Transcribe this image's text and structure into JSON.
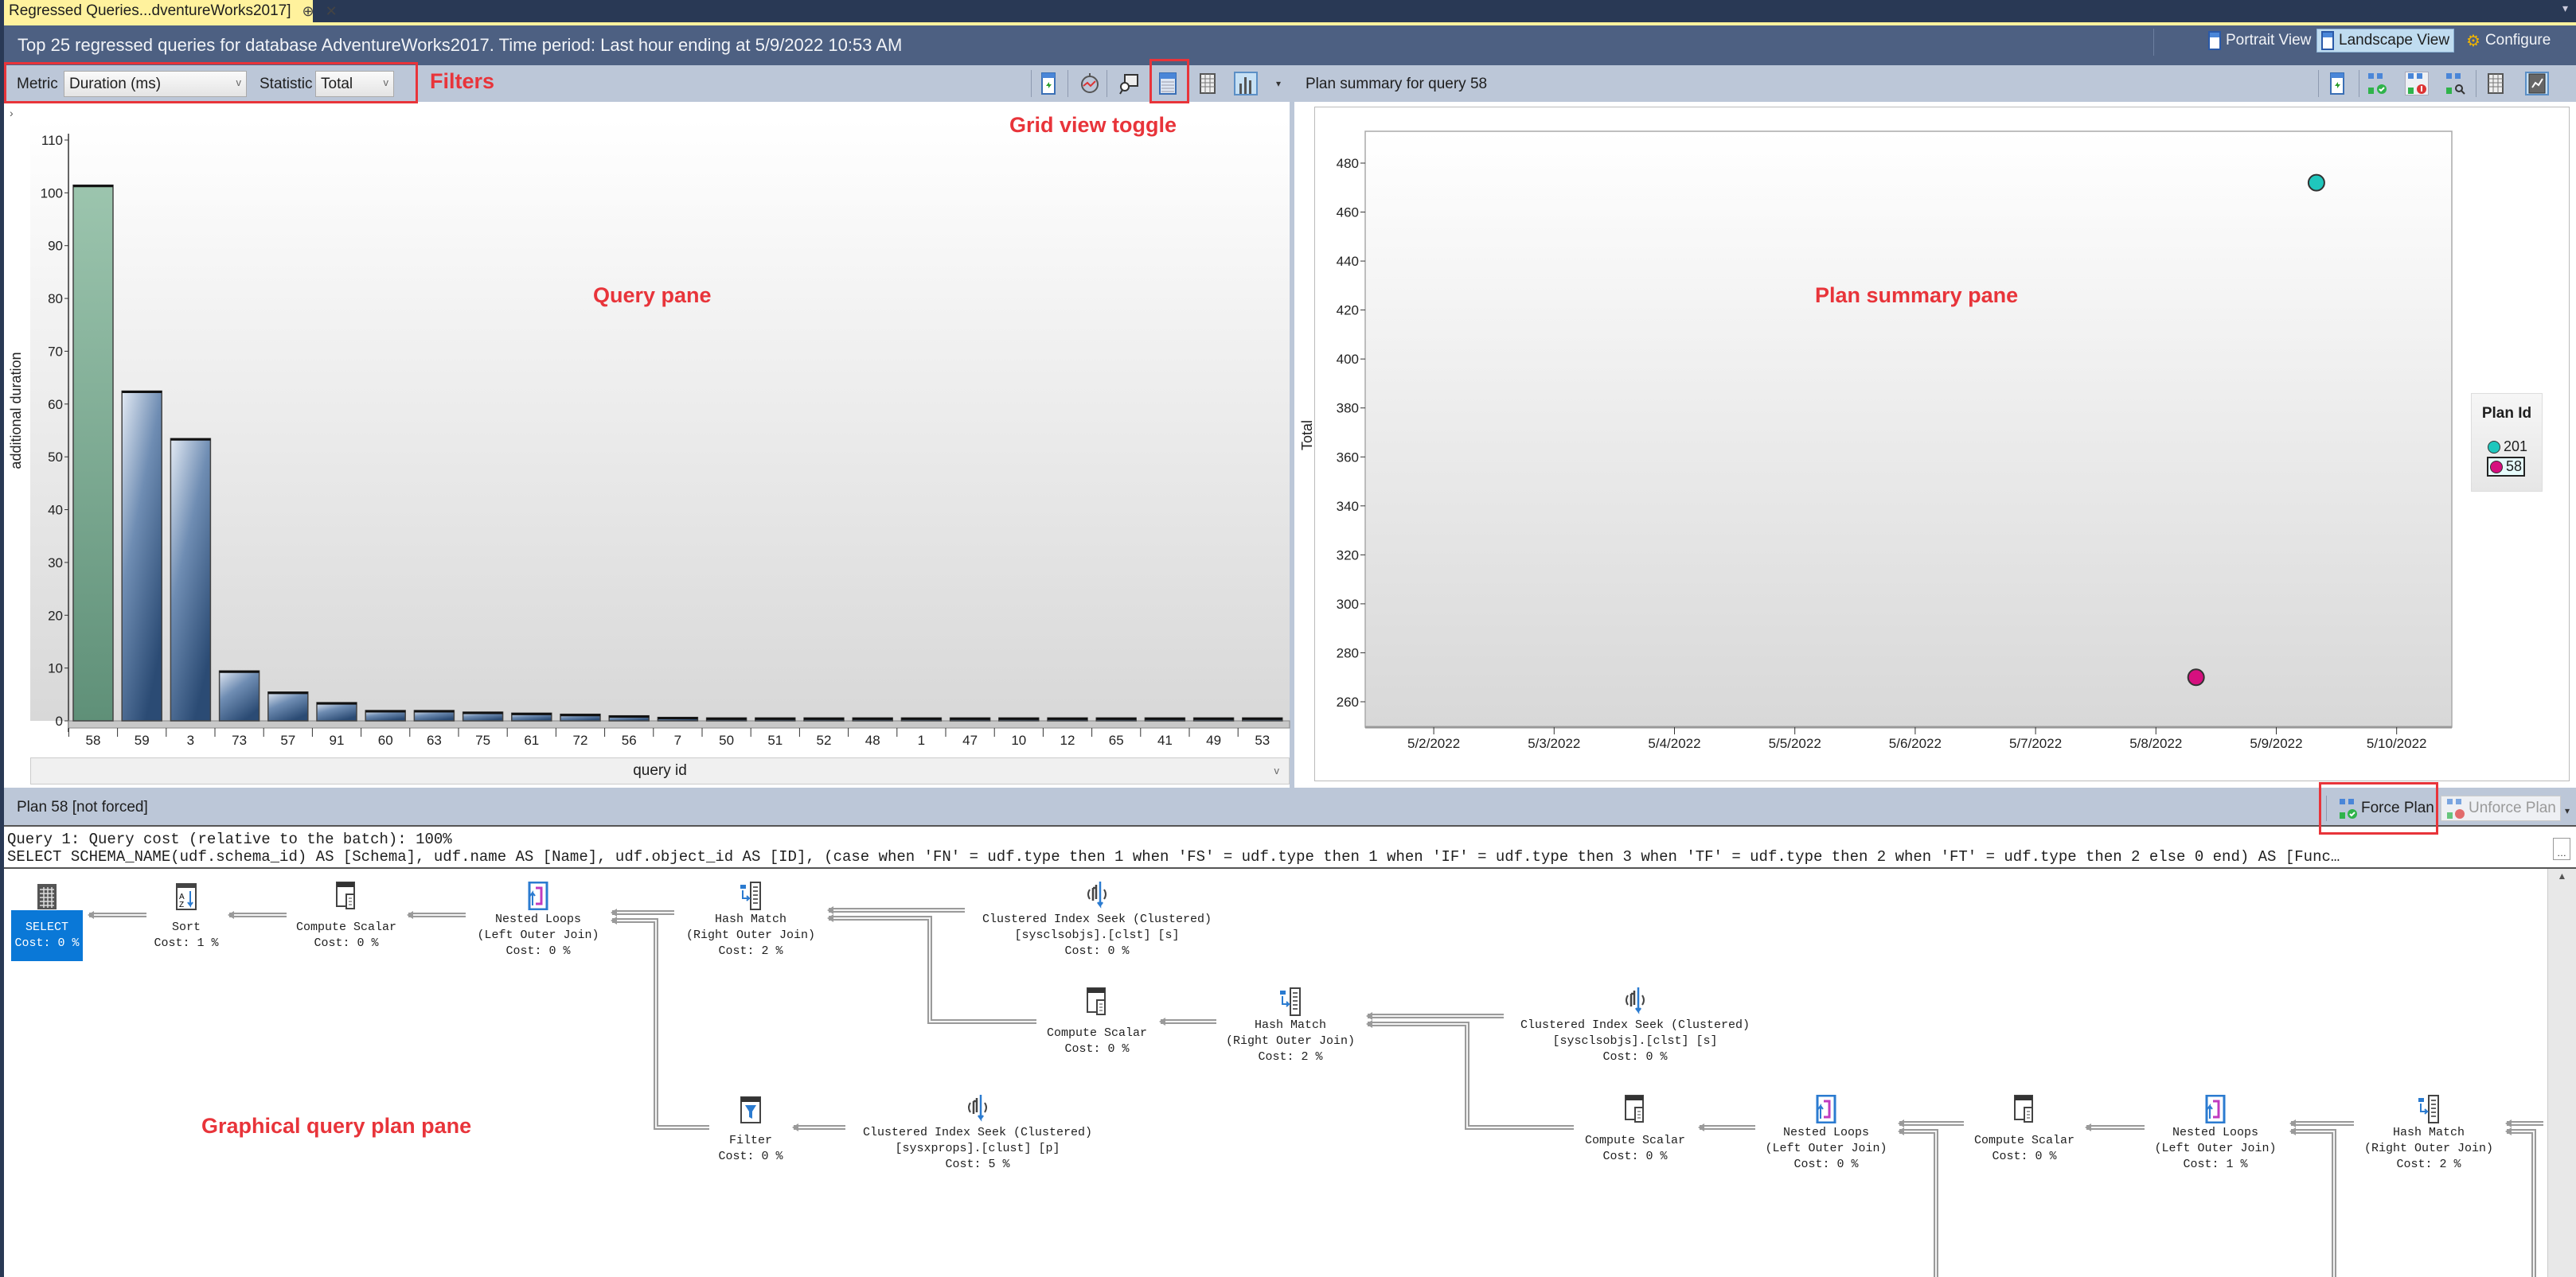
{
  "tab": {
    "label": "Regressed Queries...dventureWorks2017]",
    "pin_icon": "⊕",
    "close_icon": "✕"
  },
  "header": {
    "title": "Top 25 regressed queries for database AdventureWorks2017. Time period: Last hour ending at 5/9/2022 10:53 AM",
    "views": [
      {
        "label": "Portrait View",
        "active": false
      },
      {
        "label": "Landscape View",
        "active": true
      },
      {
        "label": "Configure",
        "active": false
      }
    ]
  },
  "query_pane": {
    "filters": {
      "metric_label": "Metric",
      "metric_value": "Duration (ms)",
      "statistic_label": "Statistic",
      "statistic_value": "Total"
    },
    "toolbar_icons": [
      "refresh-icon",
      "track-query-icon",
      "view-query-icon",
      "grid-view-icon",
      "grid-columns-icon",
      "chart-view-icon"
    ],
    "footer_label": "query id"
  },
  "plan_summary": {
    "title": "Plan summary for query 58",
    "toolbar_icons": [
      "refresh-icon",
      "force-plan-icon",
      "unforce-plan-icon",
      "compare-plans-icon",
      "grid-view-icon",
      "chart-view-icon"
    ]
  },
  "plan": {
    "title": "Plan 58 [not forced]",
    "force_label": "Force Plan",
    "unforce_label": "Unforce Plan",
    "query_cost": "Query 1: Query cost (relative to the batch): 100%",
    "sql": "SELECT SCHEMA_NAME(udf.schema_id) AS [Schema], udf.name AS [Name], udf.object_id AS [ID], (case when 'FN' = udf.type then 1 when 'FS' = udf.type then 1 when 'IF' = udf.type then 3 when 'TF' = udf.type then 2 when 'FT' = udf.type then 2 else 0 end) AS [Func…",
    "nodes": [
      {
        "icon": "select",
        "lines": [
          "SELECT",
          "Cost: 0 %"
        ],
        "selected": true
      },
      {
        "icon": "sort",
        "lines": [
          "Sort",
          "Cost: 1 %"
        ]
      },
      {
        "icon": "compute-scalar",
        "lines": [
          "Compute Scalar",
          "Cost: 0 %"
        ]
      },
      {
        "icon": "nested-loops",
        "lines": [
          "Nested Loops",
          "(Left Outer Join)",
          "Cost: 0 %"
        ]
      },
      {
        "icon": "hash-match",
        "lines": [
          "Hash Match",
          "(Right Outer Join)",
          "Cost: 2 %"
        ]
      },
      {
        "icon": "index-seek",
        "lines": [
          "Clustered Index Seek (Clustered)",
          "[sysclsobjs].[clst] [s]",
          "Cost: 0 %"
        ]
      },
      {
        "icon": "compute-scalar",
        "lines": [
          "Compute Scalar",
          "Cost: 0 %"
        ]
      },
      {
        "icon": "hash-match",
        "lines": [
          "Hash Match",
          "(Right Outer Join)",
          "Cost: 2 %"
        ]
      },
      {
        "icon": "index-seek",
        "lines": [
          "Clustered Index Seek (Clustered)",
          "[sysclsobjs].[clst] [s]",
          "Cost: 0 %"
        ]
      },
      {
        "icon": "filter",
        "lines": [
          "Filter",
          "Cost: 0 %"
        ]
      },
      {
        "icon": "index-seek",
        "lines": [
          "Clustered Index Seek (Clustered)",
          "[sysxprops].[clust] [p]",
          "Cost: 5 %"
        ]
      },
      {
        "icon": "compute-scalar",
        "lines": [
          "Compute Scalar",
          "Cost: 0 %"
        ]
      },
      {
        "icon": "nested-loops",
        "lines": [
          "Nested Loops",
          "(Left Outer Join)",
          "Cost: 0 %"
        ]
      },
      {
        "icon": "compute-scalar",
        "lines": [
          "Compute Scalar",
          "Cost: 0 %"
        ]
      },
      {
        "icon": "nested-loops",
        "lines": [
          "Nested Loops",
          "(Left Outer Join)",
          "Cost: 1 %"
        ]
      },
      {
        "icon": "hash-match",
        "lines": [
          "Hash Match",
          "(Right Outer Join)",
          "Cost: 2 %"
        ]
      }
    ]
  },
  "annotations": {
    "filters": "Filters",
    "grid_view_toggle": "Grid view toggle",
    "query_pane": "Query pane",
    "plan_summary_pane": "Plan summary pane",
    "graphical_plan_pane": "Graphical query plan pane"
  },
  "colors": {
    "accent_red": "#e8343a",
    "bar_selected": "#6f9f88",
    "bar": "#2b4b74",
    "plan_201": "#1fc7bd",
    "plan_58": "#d6107f"
  },
  "chart_data": [
    {
      "type": "bar",
      "xlabel": "query id",
      "ylabel": "additional duration",
      "ylim": [
        0,
        110
      ],
      "yticks": [
        0,
        10,
        20,
        30,
        40,
        50,
        60,
        70,
        80,
        90,
        100,
        110
      ],
      "categories": [
        "58",
        "59",
        "3",
        "73",
        "57",
        "91",
        "60",
        "63",
        "75",
        "61",
        "72",
        "56",
        "7",
        "50",
        "51",
        "52",
        "48",
        "1",
        "47",
        "10",
        "12",
        "65",
        "41",
        "49",
        "53"
      ],
      "values": [
        101,
        62,
        53,
        9,
        5,
        3,
        1.5,
        1.5,
        1.2,
        1,
        0.8,
        0.5,
        0.2,
        0.1,
        0.1,
        0.1,
        0.1,
        0.1,
        0.1,
        0.1,
        0.1,
        0.1,
        0.1,
        0.1,
        0.1
      ],
      "selected": "58",
      "grid": false
    },
    {
      "type": "scatter",
      "ylabel": "Total",
      "ylim": [
        249.6,
        493
      ],
      "yticks": [
        260,
        280,
        300,
        320,
        340,
        360,
        380,
        400,
        420,
        440,
        460,
        480
      ],
      "xlim": [
        "2022-05-01T10:20",
        "2022-05-10T11:00"
      ],
      "xticks": [
        "2022-05-02",
        "2022-05-03",
        "2022-05-04",
        "2022-05-05",
        "2022-05-06",
        "2022-05-07",
        "2022-05-08",
        "2022-05-09",
        "2022-05-10"
      ],
      "xtick_labels": [
        "5/2/2022",
        "5/3/2022",
        "5/4/2022",
        "5/5/2022",
        "5/6/2022",
        "5/7/2022",
        "5/8/2022",
        "5/9/2022",
        "5/10/2022"
      ],
      "legend": {
        "title": "Plan Id",
        "placement": "right"
      },
      "series": [
        {
          "name": "201",
          "color": "#1fc7bd",
          "points": [
            {
              "x": "2022-05-09T08:00",
              "y": 472
            }
          ]
        },
        {
          "name": "58",
          "color": "#d6107f",
          "points": [
            {
              "x": "2022-05-08T08:00",
              "y": 270
            }
          ],
          "selected": true
        }
      ],
      "grid": false
    }
  ]
}
